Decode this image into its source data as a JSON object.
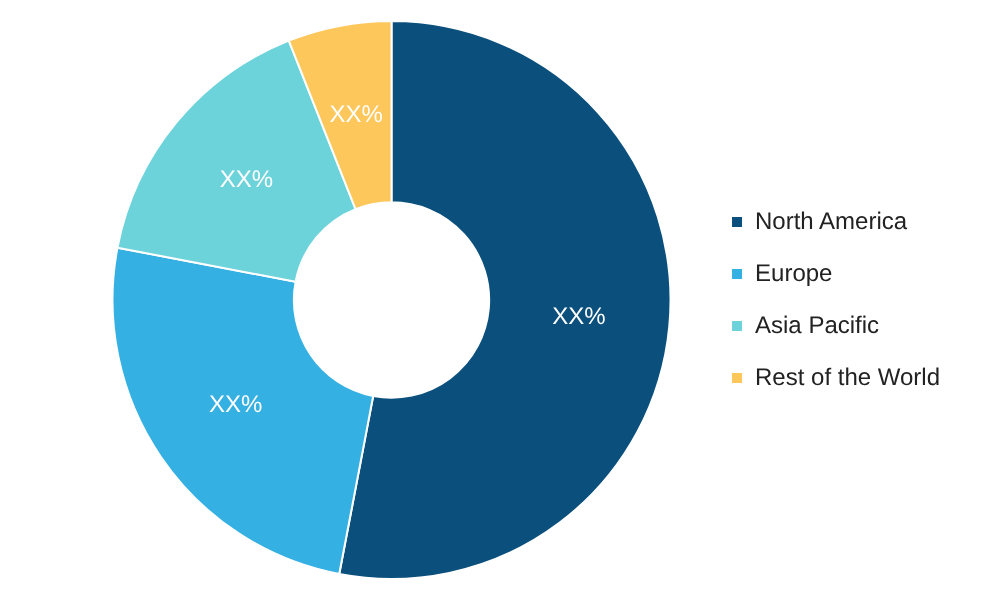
{
  "chart_data": {
    "type": "donut",
    "categories": [
      "North America",
      "Europe",
      "Asia Pacific",
      "Rest of the World"
    ],
    "values": [
      53,
      25,
      16,
      6
    ],
    "colors": [
      "#0b4f7c",
      "#35b0e2",
      "#6dd3db",
      "#fdc75c"
    ],
    "value_labels": [
      "XX%",
      "XX%",
      "XX%",
      "XX%"
    ],
    "legend": "right"
  }
}
